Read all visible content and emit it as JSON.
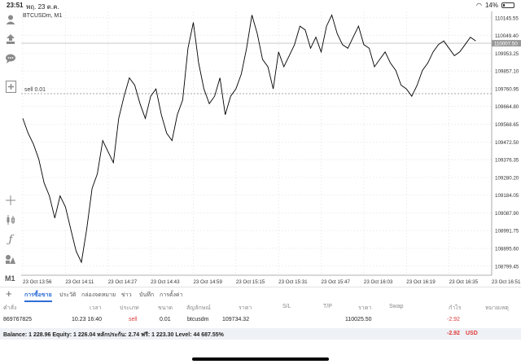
{
  "status_bar": {
    "time": "23:51",
    "date": "พฤ. 23 ต.ค.",
    "battery": "14%"
  },
  "chart": {
    "symbol_label": "BTCUSDm, M1",
    "sell_line_label": "sell 0.01",
    "current_price_tag": "110007.50",
    "colors": {
      "line": "#000000",
      "grid": "#e6e6e6",
      "price_tag_bg": "#9a9a9a",
      "sell_line": "#888888"
    }
  },
  "chart_data": {
    "type": "line",
    "price_axis_ticks": [
      "110145.55",
      "110049.40",
      "109953.25",
      "109857.10",
      "109760.95",
      "109664.80",
      "109568.65",
      "109472.50",
      "109376.35",
      "109280.20",
      "109184.05",
      "109087.90",
      "108991.75",
      "108895.60",
      "108799.45"
    ],
    "time_axis_ticks": [
      "23 Oct 13:56",
      "23 Oct 14:11",
      "23 Oct 14:27",
      "23 Oct 14:43",
      "23 Oct 14:59",
      "23 Oct 15:15",
      "23 Oct 15:31",
      "23 Oct 15:47",
      "23 Oct 16:03",
      "23 Oct 16:19",
      "23 Oct 16:35",
      "23 Oct 16:51"
    ],
    "ylim": [
      108750,
      110180
    ],
    "sell_level": 109734.32,
    "current_price": 110007.5,
    "x_minutes_since_first_tick_label": [
      0,
      2,
      4,
      6,
      8,
      10,
      12,
      14,
      16,
      18,
      20,
      22,
      24,
      26,
      28,
      30,
      32,
      34,
      36,
      38,
      40,
      42,
      44,
      46,
      48,
      50,
      52,
      54,
      56,
      58,
      60,
      62,
      64,
      66,
      68,
      70,
      72,
      74,
      76,
      78,
      80,
      82,
      84,
      86,
      88,
      90,
      92,
      94,
      96,
      98,
      100,
      102,
      104,
      106,
      108,
      110,
      112,
      114,
      116,
      118,
      120,
      122,
      124,
      126,
      128,
      130,
      132,
      134,
      136,
      138,
      140,
      142,
      144,
      146,
      148,
      150,
      152,
      154,
      156,
      158,
      160,
      162,
      164,
      166,
      168,
      170
    ],
    "values": [
      109600,
      109520,
      109460,
      109380,
      109250,
      109180,
      109060,
      109180,
      109120,
      109000,
      108880,
      108820,
      109000,
      109220,
      109300,
      109480,
      109420,
      109360,
      109600,
      109720,
      109820,
      109780,
      109680,
      109600,
      109720,
      109760,
      109620,
      109520,
      109480,
      109620,
      109700,
      109980,
      110120,
      109900,
      109760,
      109680,
      109720,
      109820,
      109620,
      109720,
      109760,
      109840,
      109980,
      110160,
      110060,
      109920,
      109880,
      109760,
      109960,
      109880,
      109940,
      110000,
      110100,
      110080,
      109980,
      110040,
      109960,
      110100,
      110160,
      110060,
      110000,
      109980,
      110040,
      110100,
      110000,
      109980,
      109880,
      109920,
      109960,
      109900,
      109860,
      109780,
      109760,
      109720,
      109780,
      109860,
      109900,
      109960,
      110000,
      110020,
      109980,
      109940,
      109960,
      110000,
      110040,
      110020
    ]
  },
  "toolbar": {
    "timeframe": "M1"
  },
  "tabs": [
    {
      "label": "การซื้อขาย",
      "active": true
    },
    {
      "label": "ประวัติ",
      "active": false
    },
    {
      "label": "กล่องจดหมาย",
      "active": false
    },
    {
      "label": "ข่าว",
      "active": false
    },
    {
      "label": "บันทึก",
      "active": false
    },
    {
      "label": "การตั้งค่า",
      "active": false
    }
  ],
  "table": {
    "headers": [
      "คำสั่ง",
      "เวลา",
      "ประเภท",
      "ขนาด",
      "สัญลักษณ์",
      "ราคา",
      "S/L",
      "T/P",
      "ราคา",
      "Swap",
      "กำไร",
      "หมายเหตุ"
    ],
    "row": {
      "order": "869767825",
      "time": "10.23 16:40",
      "type": "sell",
      "size": "0.01",
      "symbol": "btcusdm",
      "open_price": "109734.32",
      "current_price": "110025.50",
      "profit": "-2.92"
    }
  },
  "balance_bar": {
    "text": "Balance: 1 228.96 Equity: 1 226.04 หลักประกัน: 2.74 ฟรี: 1 223.30 Level: 44 687.55%",
    "profit": "-2.92",
    "currency": "USD"
  }
}
